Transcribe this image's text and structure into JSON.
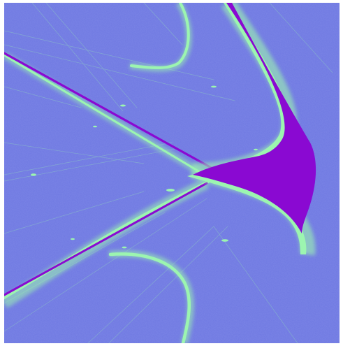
{
  "image": {
    "kind": "strange-attractor-render",
    "palette": {
      "background": "#6e78e2",
      "background_light": "#8f98ec",
      "filament": "#9cf5b0",
      "core": "#8a09d2",
      "frame": "#ffffff"
    }
  }
}
